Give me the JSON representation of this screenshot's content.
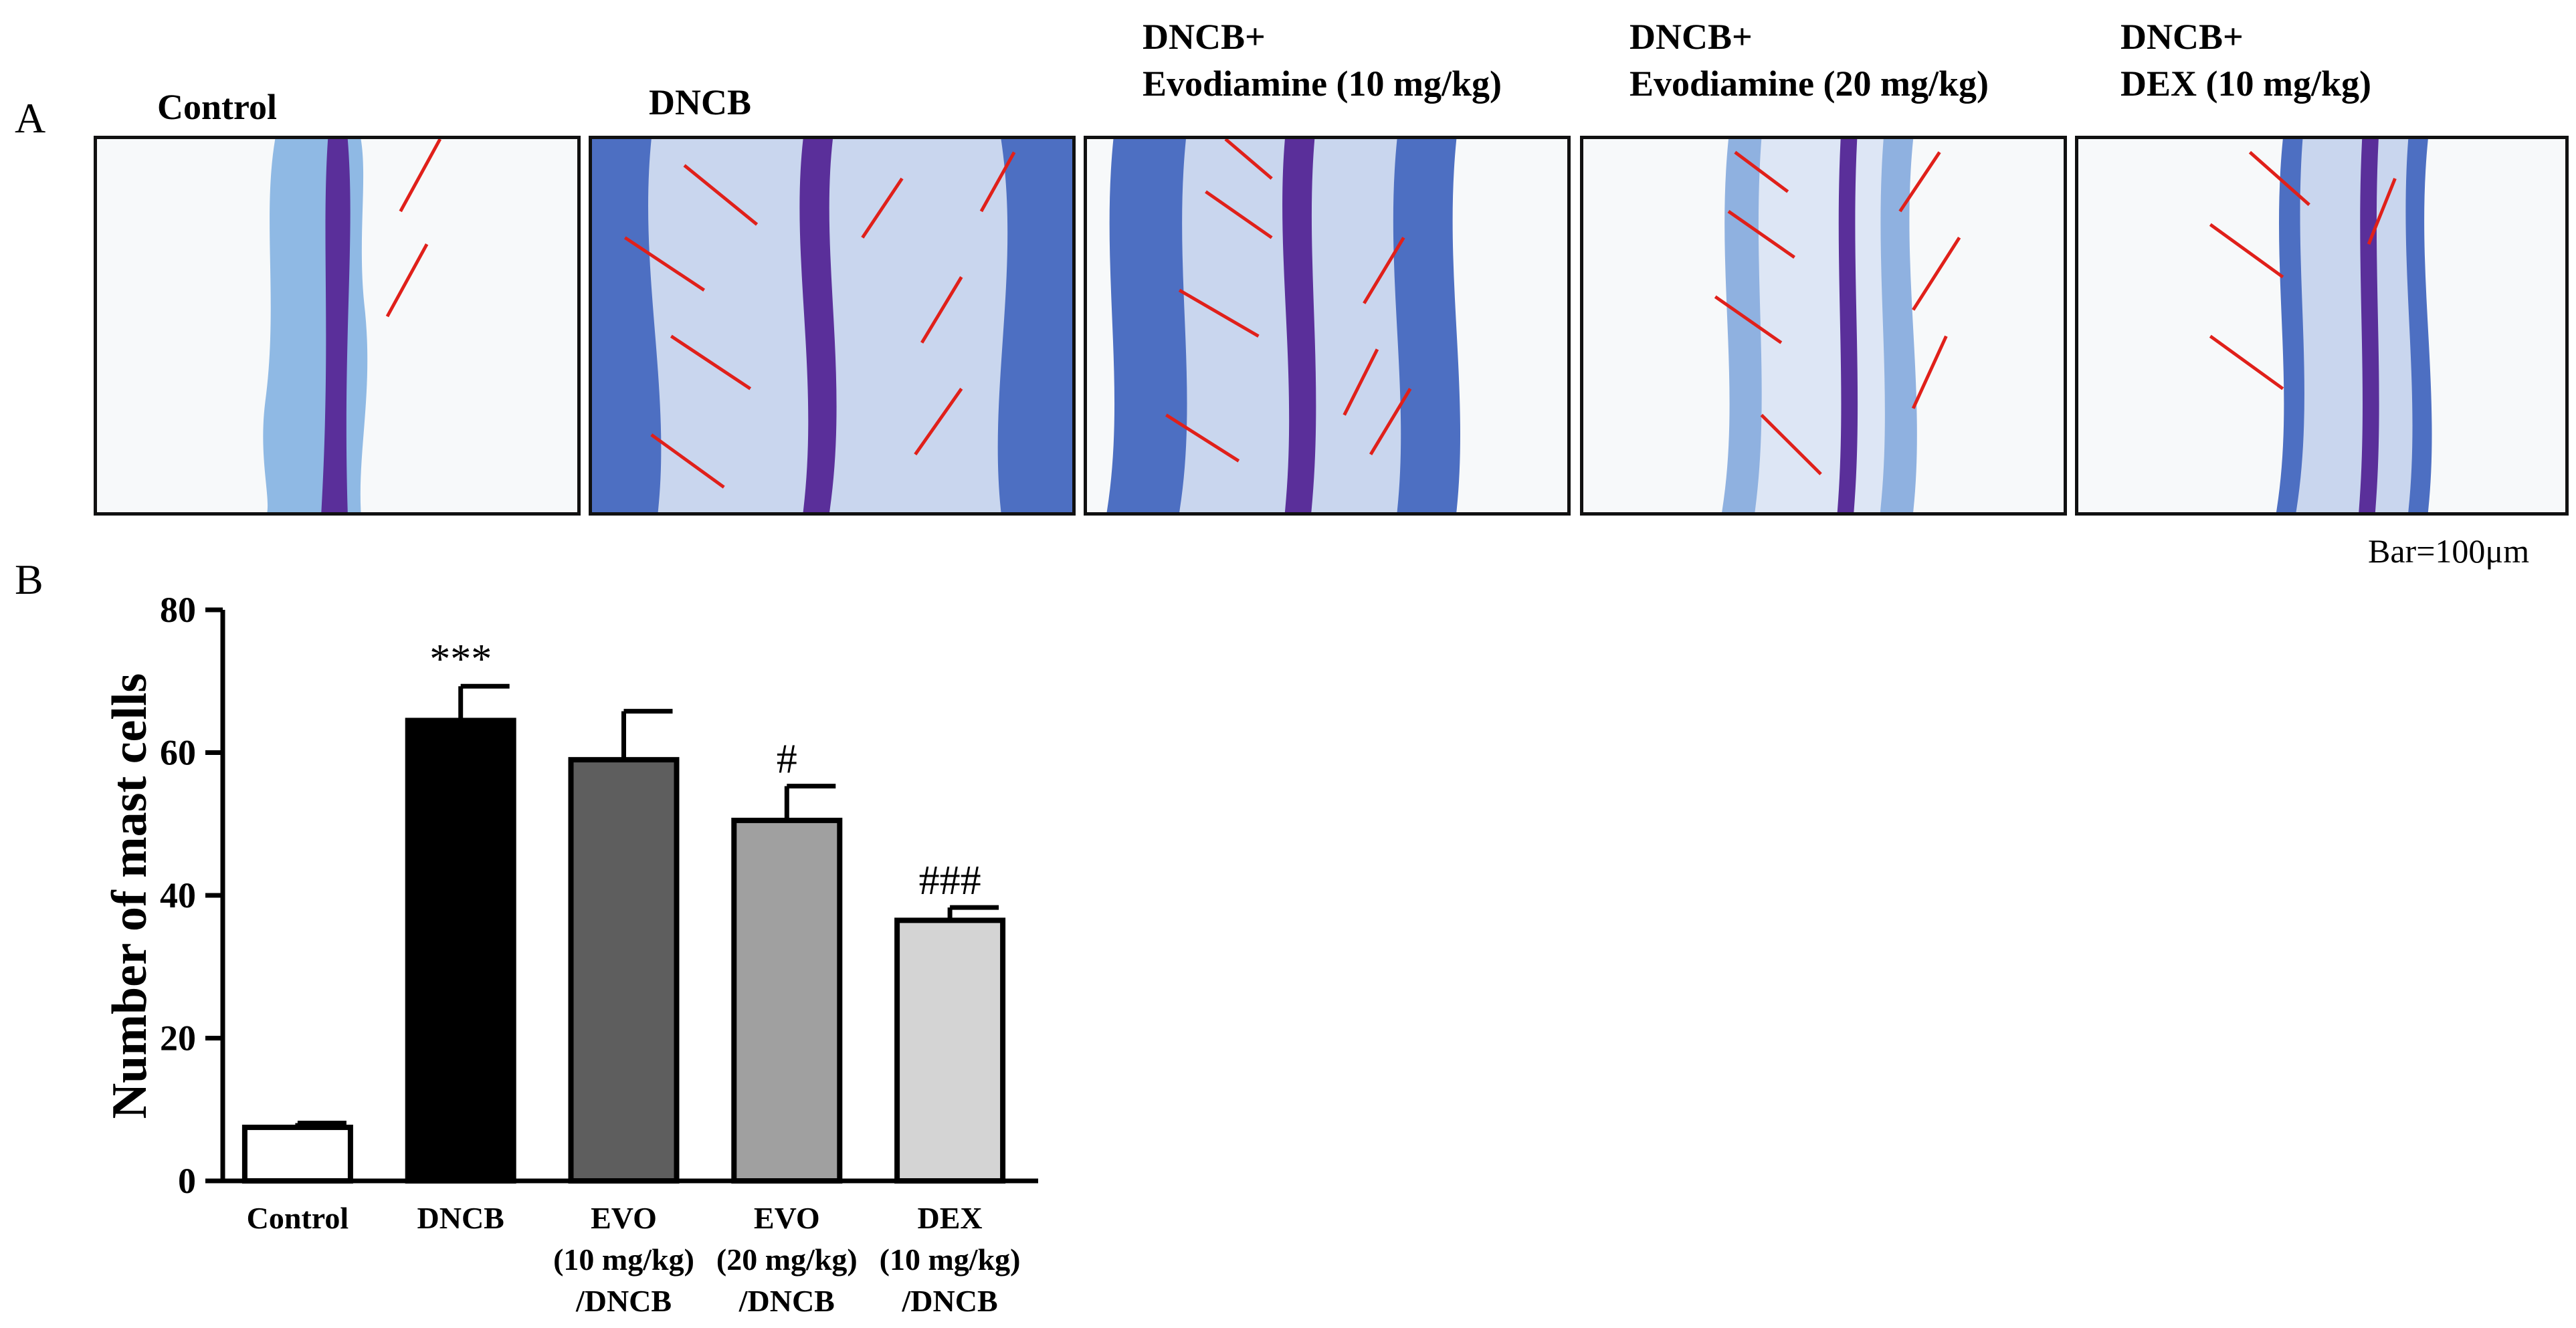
{
  "figure": {
    "panel_a_letter": "A",
    "panel_b_letter": "B",
    "scale_bar_note": "Bar=100μm",
    "image_panels": [
      {
        "label_line1": "Control",
        "label_line2": ""
      },
      {
        "label_line1": "DNCB",
        "label_line2": ""
      },
      {
        "label_line1": "DNCB+",
        "label_line2": "Evodiamine (10 mg/kg)"
      },
      {
        "label_line1": "DNCB+",
        "label_line2": "Evodiamine (20 mg/kg)"
      },
      {
        "label_line1": "DNCB+",
        "label_line2": "DEX (10 mg/kg)"
      }
    ],
    "colors": {
      "tissue_blue": "#4d6fc2",
      "tissue_light": "#9fb6e2",
      "cartilage_purple": "#5a2f9a",
      "arrow_red": "#e0201a"
    }
  },
  "chart_data": {
    "type": "bar",
    "title": "",
    "xlabel": "",
    "ylabel": "Number of mast cells",
    "ylim": [
      0,
      80
    ],
    "yticks": [
      0,
      20,
      40,
      60,
      80
    ],
    "categories": [
      [
        "Control"
      ],
      [
        "DNCB"
      ],
      [
        "EVO",
        "(10 mg/kg)",
        "/DNCB"
      ],
      [
        "EVO",
        "(20 mg/kg)",
        "/DNCB"
      ],
      [
        "DEX",
        "(10 mg/kg)",
        "/DNCB"
      ]
    ],
    "values": [
      7.5,
      64.5,
      59,
      50.5,
      36.5
    ],
    "errors": [
      0.6,
      4.8,
      6.8,
      4.8,
      1.8
    ],
    "annotations": [
      "",
      "***",
      "",
      "#",
      "###"
    ],
    "bar_colors": [
      "#ffffff",
      "#000000",
      "#5e5e5e",
      "#a0a0a0",
      "#d4d4d4"
    ],
    "grid": false,
    "legend": "none"
  }
}
